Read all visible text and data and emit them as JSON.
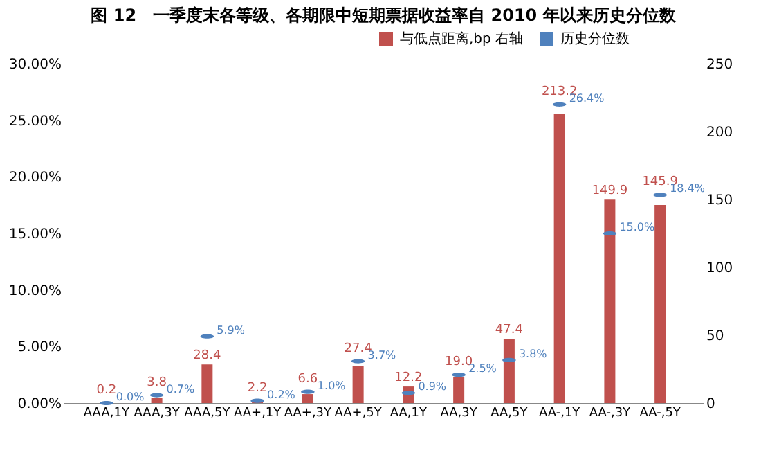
{
  "chart_data": {
    "type": "bar",
    "title": "图 12　一季度末各等级、各期限中短期票据收益率自 2010 年以来历史分位数",
    "categories": [
      "AAA,1Y",
      "AAA,3Y",
      "AAA,5Y",
      "AA+,1Y",
      "AA+,3Y",
      "AA+,5Y",
      "AA,1Y",
      "AA,3Y",
      "AA,5Y",
      "AA-,1Y",
      "AA-,3Y",
      "AA-,5Y"
    ],
    "series": [
      {
        "name": "与低点距离,bp 右轴",
        "type": "bar",
        "axis": "y2",
        "color": "#c0504d",
        "values": [
          0.2,
          3.8,
          28.4,
          2.2,
          6.6,
          27.4,
          12.2,
          19.0,
          47.4,
          213.2,
          149.9,
          145.9
        ],
        "value_labels": [
          "0.2",
          "3.8",
          "28.4",
          "2.2",
          "6.6",
          "27.4",
          "12.2",
          "19.0",
          "47.4",
          "213.2",
          "149.9",
          "145.9"
        ]
      },
      {
        "name": "历史分位数",
        "type": "scatter",
        "color": "#4f81bd",
        "values": [
          0.0,
          0.7,
          5.9,
          0.2,
          1.0,
          3.7,
          0.9,
          2.5,
          3.8,
          26.4,
          15.0,
          18.4
        ],
        "value_labels": [
          "0.0%",
          "0.7%",
          "5.9%",
          "0.2%",
          "1.0%",
          "3.7%",
          "0.9%",
          "2.5%",
          "3.8%",
          "26.4%",
          "15.0%",
          "18.4%"
        ]
      }
    ],
    "ylim": [
      0,
      30
    ],
    "yticks": [
      {
        "value": 0,
        "label": "0.00%"
      },
      {
        "value": 5,
        "label": "5.00%"
      },
      {
        "value": 10,
        "label": "10.00%"
      },
      {
        "value": 15,
        "label": "15.00%"
      },
      {
        "value": 20,
        "label": "20.00%"
      },
      {
        "value": 25,
        "label": "25.00%"
      },
      {
        "value": 30,
        "label": "30.00%"
      }
    ],
    "y2lim": [
      0,
      250
    ],
    "y2ticks": [
      0,
      50,
      100,
      150,
      200,
      250
    ],
    "legend": "top right",
    "grid": false
  }
}
